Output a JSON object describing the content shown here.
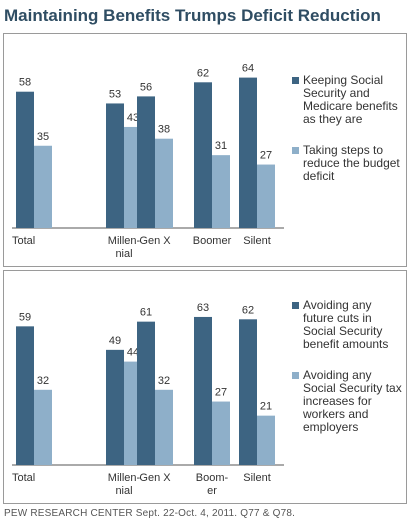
{
  "title": "Maintaining Benefits Trumps Deficit Reduction",
  "source": "PEW RESEARCH CENTER Sept. 22-Oct. 4, 2011. Q77 & Q78.",
  "colors": {
    "dark": "#3d6482",
    "light": "#8eafc9",
    "title": "#2f4d63",
    "axis": "#555555"
  },
  "chart_data": [
    {
      "type": "bar",
      "categories": [
        "Total",
        "Millen-\nnial",
        "Gen X",
        "Boomer",
        "Silent"
      ],
      "series": [
        {
          "name": "Keeping Social Security and Medicare benefits as they are",
          "values": [
            58,
            53,
            56,
            62,
            64
          ]
        },
        {
          "name": "Taking steps to reduce the budget deficit",
          "values": [
            35,
            43,
            38,
            31,
            27
          ]
        }
      ],
      "ylim": [
        0,
        70
      ],
      "legend": "right"
    },
    {
      "type": "bar",
      "categories": [
        "Total",
        "Millen-\nnial",
        "Gen X",
        "Boom-\ner",
        "Silent"
      ],
      "series": [
        {
          "name": "Avoiding any future cuts in Social Security benefit amounts",
          "values": [
            59,
            49,
            61,
            63,
            62
          ]
        },
        {
          "name": "Avoiding any Social Security tax increases for workers and employers",
          "values": [
            32,
            44,
            32,
            27,
            21
          ]
        }
      ],
      "ylim": [
        0,
        70
      ],
      "legend": "right"
    }
  ]
}
